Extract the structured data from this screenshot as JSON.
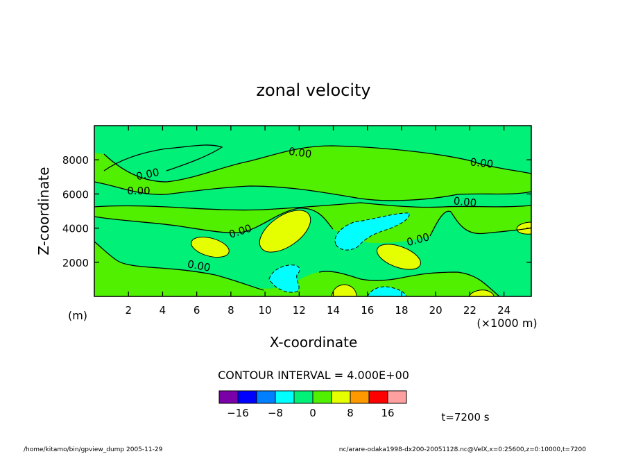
{
  "chart_data": {
    "type": "heatmap",
    "title": "zonal velocity",
    "xlabel": "X-coordinate",
    "ylabel": "Z-coordinate",
    "x_unit": "(×1000 m)",
    "y_unit": "(m)",
    "xlim": [
      0,
      25.6
    ],
    "ylim": [
      0,
      10000
    ],
    "x_ticks": [
      2,
      4,
      6,
      8,
      10,
      12,
      14,
      16,
      18,
      20,
      22,
      24
    ],
    "y_ticks": [
      2000,
      4000,
      6000,
      8000
    ],
    "contour_interval_text": "CONTOUR INTERVAL = 4.000E+00",
    "contour_label": "0.00",
    "colorbar": {
      "levels": [
        "−16",
        "−8",
        "0",
        "8",
        "16"
      ],
      "colors": [
        "#7a00a8",
        "#0000ff",
        "#0080ff",
        "#00ffff",
        "#00f078",
        "#50f000",
        "#e6ff00",
        "#ff9900",
        "#ff0000",
        "#ffa0a0"
      ]
    },
    "time_text": "t=7200 s",
    "anomalies": [
      {
        "x": 11.0,
        "z": 3900,
        "value": 6
      },
      {
        "x": 7.0,
        "z": 2800,
        "value": 5
      },
      {
        "x": 18.3,
        "z": 2300,
        "value": 5
      },
      {
        "x": 16.5,
        "z": 3800,
        "value": -5
      },
      {
        "x": 11.0,
        "z": 1000,
        "value": -5
      },
      {
        "x": 17.2,
        "z": 150,
        "value": -5
      },
      {
        "x": 14.7,
        "z": 300,
        "value": 5
      },
      {
        "x": 22.7,
        "z": 120,
        "value": 5
      },
      {
        "x": 25.0,
        "z": 4000,
        "value": 5
      },
      {
        "x": 5.5,
        "z": 7800,
        "value": 2
      }
    ]
  },
  "footer": {
    "left": "/home/kitamo/bin/gpview_dump  2005-11-29",
    "right": "nc/arare-odaka1998-dx200-20051128.nc@VelX,x=0:25600,z=0:10000,t=7200"
  }
}
